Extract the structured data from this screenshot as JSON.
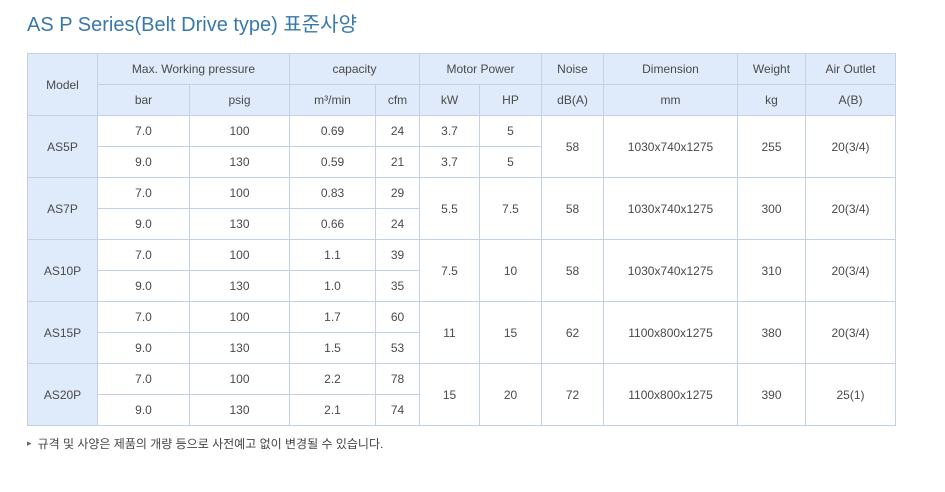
{
  "title": "AS P Series(Belt Drive type) 표준사양",
  "colors": {
    "accent": "#3878ad",
    "header_bg": "#dfeafa",
    "border": "#c3d1e6",
    "text": "#4a4a4a"
  },
  "table": {
    "header_groups": [
      {
        "label": "Model",
        "units": []
      },
      {
        "label": "Max. Working pressure",
        "units": [
          "bar",
          "psig"
        ]
      },
      {
        "label": "capacity",
        "units": [
          "m³/min",
          "cfm"
        ]
      },
      {
        "label": "Motor Power",
        "units": [
          "kW",
          "HP"
        ]
      },
      {
        "label": "Noise",
        "units": [
          "dB(A)"
        ]
      },
      {
        "label": "Dimension",
        "units": [
          "mm"
        ]
      },
      {
        "label": "Weight",
        "units": [
          "kg"
        ]
      },
      {
        "label": "Air Outlet",
        "units": [
          "A(B)"
        ]
      }
    ],
    "models": [
      {
        "name": "AS5P",
        "motor_merged": false,
        "rows": [
          {
            "bar": "7.0",
            "psig": "100",
            "m3min": "0.69",
            "cfm": "24",
            "kw": "3.7",
            "hp": "5"
          },
          {
            "bar": "9.0",
            "psig": "130",
            "m3min": "0.59",
            "cfm": "21",
            "kw": "3.7",
            "hp": "5"
          }
        ],
        "noise": "58",
        "dimension": "1030x740x1275",
        "weight": "255",
        "air_outlet": "20(3/4)"
      },
      {
        "name": "AS7P",
        "motor_merged": true,
        "rows": [
          {
            "bar": "7.0",
            "psig": "100",
            "m3min": "0.83",
            "cfm": "29",
            "kw": "5.5",
            "hp": "7.5"
          },
          {
            "bar": "9.0",
            "psig": "130",
            "m3min": "0.66",
            "cfm": "24"
          }
        ],
        "noise": "58",
        "dimension": "1030x740x1275",
        "weight": "300",
        "air_outlet": "20(3/4)"
      },
      {
        "name": "AS10P",
        "motor_merged": true,
        "rows": [
          {
            "bar": "7.0",
            "psig": "100",
            "m3min": "1.1",
            "cfm": "39",
            "kw": "7.5",
            "hp": "10"
          },
          {
            "bar": "9.0",
            "psig": "130",
            "m3min": "1.0",
            "cfm": "35"
          }
        ],
        "noise": "58",
        "dimension": "1030x740x1275",
        "weight": "310",
        "air_outlet": "20(3/4)"
      },
      {
        "name": "AS15P",
        "motor_merged": true,
        "rows": [
          {
            "bar": "7.0",
            "psig": "100",
            "m3min": "1.7",
            "cfm": "60",
            "kw": "11",
            "hp": "15"
          },
          {
            "bar": "9.0",
            "psig": "130",
            "m3min": "1.5",
            "cfm": "53"
          }
        ],
        "noise": "62",
        "dimension": "1100x800x1275",
        "weight": "380",
        "air_outlet": "20(3/4)"
      },
      {
        "name": "AS20P",
        "motor_merged": true,
        "rows": [
          {
            "bar": "7.0",
            "psig": "100",
            "m3min": "2.2",
            "cfm": "78",
            "kw": "15",
            "hp": "20"
          },
          {
            "bar": "9.0",
            "psig": "130",
            "m3min": "2.1",
            "cfm": "74"
          }
        ],
        "noise": "72",
        "dimension": "1100x800x1275",
        "weight": "390",
        "air_outlet": "25(1)"
      }
    ]
  },
  "footnote": {
    "bullet": "▸",
    "text": "규격 및 사양은 제품의 개량 등으로 사전예고 없이 변경될 수 있습니다."
  }
}
